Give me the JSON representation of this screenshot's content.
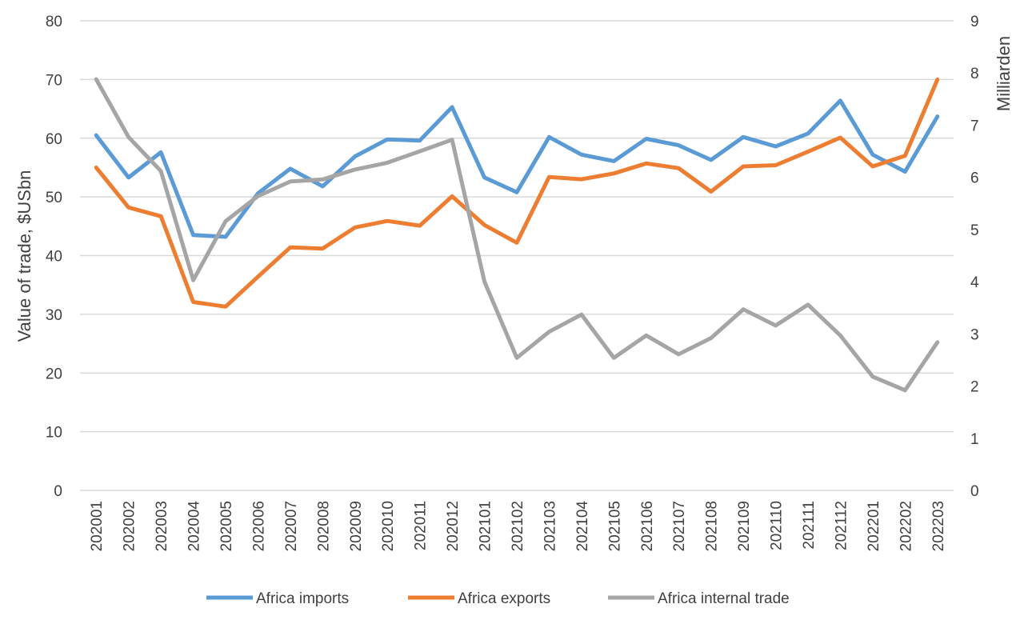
{
  "chart_data": {
    "type": "line",
    "title": "",
    "xlabel": "",
    "ylabel": "Value of trade, $USbn",
    "y2label": "Milliarden",
    "ylim": [
      0,
      80
    ],
    "y2lim": [
      0,
      9
    ],
    "yticks": [
      "0",
      "10",
      "20",
      "30",
      "40",
      "50",
      "60",
      "70",
      "80"
    ],
    "y2ticks": [
      "0",
      "1",
      "2",
      "3",
      "4",
      "5",
      "6",
      "7",
      "8",
      "9"
    ],
    "grid": true,
    "legend_position": "bottom",
    "categories": [
      "202001",
      "202002",
      "202003",
      "202004",
      "202005",
      "202006",
      "202007",
      "202008",
      "202009",
      "202010",
      "202011",
      "202012",
      "202101",
      "202102",
      "202103",
      "202104",
      "202105",
      "202106",
      "202107",
      "202108",
      "202109",
      "202110",
      "202111",
      "202112",
      "202201",
      "202202",
      "202203"
    ],
    "series": [
      {
        "name": "Africa imports",
        "axis": "left",
        "color": "#5B9BD5",
        "values": [
          60.5,
          53.3,
          57.6,
          43.5,
          43.2,
          50.6,
          54.8,
          51.8,
          56.9,
          59.8,
          59.6,
          65.3,
          53.3,
          50.8,
          60.2,
          57.2,
          56.1,
          59.9,
          58.8,
          56.3,
          60.2,
          58.6,
          60.8,
          66.4,
          57.2,
          54.3,
          63.7
        ]
      },
      {
        "name": "Africa exports",
        "axis": "left",
        "color": "#ED7D31",
        "values": [
          55.0,
          48.2,
          46.7,
          32.1,
          31.3,
          36.4,
          41.4,
          41.2,
          44.8,
          45.9,
          45.1,
          50.1,
          45.2,
          42.2,
          53.4,
          53.0,
          54.0,
          55.7,
          54.9,
          50.9,
          55.2,
          55.4,
          57.7,
          60.1,
          55.2,
          57.0,
          70.0
        ]
      },
      {
        "name": "Africa internal trade",
        "axis": "right",
        "color": "#A5A5A5",
        "values": [
          7.88,
          6.77,
          6.12,
          4.03,
          5.16,
          5.64,
          5.92,
          5.96,
          6.15,
          6.28,
          6.5,
          6.72,
          4.0,
          2.54,
          3.04,
          3.37,
          2.54,
          2.97,
          2.61,
          2.92,
          3.47,
          3.16,
          3.56,
          2.97,
          2.18,
          1.92,
          2.84
        ]
      }
    ]
  }
}
